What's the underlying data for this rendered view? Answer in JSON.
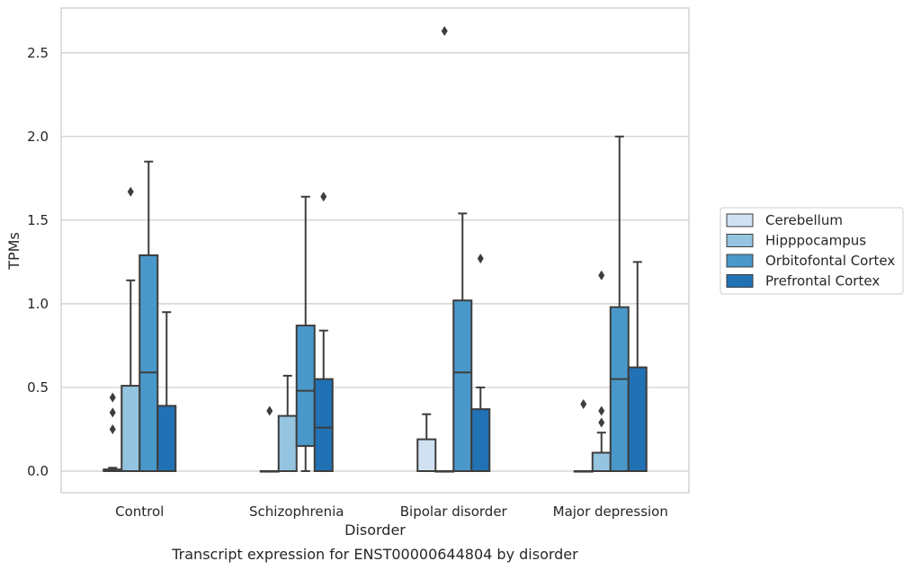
{
  "chart_data": {
    "type": "box",
    "caption": "Transcript expression for ENST00000644804 by disorder",
    "xlabel": "Disorder",
    "ylabel": "TPMs",
    "ylim": [
      -0.13,
      2.77
    ],
    "yticks": [
      0.0,
      0.5,
      1.0,
      1.5,
      2.0,
      2.5
    ],
    "ytick_labels": [
      "0.0",
      "0.5",
      "1.0",
      "1.5",
      "2.0",
      "2.5"
    ],
    "grid": "horizontal",
    "legend_position": "right",
    "categories": [
      "Control",
      "Schizophrenia",
      "Bipolar disorder",
      "Major depression"
    ],
    "series": [
      {
        "name": "Cerebellum",
        "color": "#d0e1f2",
        "boxes": [
          {
            "min": 0.0,
            "q1": 0.0,
            "median": 0.0,
            "q3": 0.01,
            "max": 0.02,
            "outliers": [
              0.25,
              0.35,
              0.44
            ]
          },
          {
            "min": 0.0,
            "q1": 0.0,
            "median": 0.0,
            "q3": 0.0,
            "max": 0.0,
            "outliers": [
              0.36
            ]
          },
          {
            "min": 0.0,
            "q1": 0.0,
            "median": 0.0,
            "q3": 0.19,
            "max": 0.34,
            "outliers": []
          },
          {
            "min": 0.0,
            "q1": 0.0,
            "median": 0.0,
            "q3": 0.0,
            "max": 0.0,
            "outliers": [
              0.4
            ]
          }
        ]
      },
      {
        "name": "Hipppocampus",
        "color": "#94c4df",
        "boxes": [
          {
            "min": 0.0,
            "q1": 0.0,
            "median": 0.0,
            "q3": 0.51,
            "max": 1.14,
            "outliers": [
              1.67
            ]
          },
          {
            "min": 0.0,
            "q1": 0.0,
            "median": 0.0,
            "q3": 0.33,
            "max": 0.57,
            "outliers": []
          },
          {
            "min": 0.0,
            "q1": 0.0,
            "median": 0.0,
            "q3": 0.0,
            "max": 0.0,
            "outliers": [
              2.63
            ]
          },
          {
            "min": 0.0,
            "q1": 0.0,
            "median": 0.0,
            "q3": 0.11,
            "max": 0.23,
            "outliers": [
              0.29,
              0.36,
              1.17
            ]
          }
        ]
      },
      {
        "name": "Orbitofontal Cortex",
        "color": "#4a98c9",
        "boxes": [
          {
            "min": 0.0,
            "q1": 0.0,
            "median": 0.59,
            "q3": 1.29,
            "max": 1.85,
            "outliers": []
          },
          {
            "min": 0.0,
            "q1": 0.15,
            "median": 0.48,
            "q3": 0.87,
            "max": 1.64,
            "outliers": []
          },
          {
            "min": 0.0,
            "q1": 0.0,
            "median": 0.59,
            "q3": 1.02,
            "max": 1.54,
            "outliers": []
          },
          {
            "min": 0.0,
            "q1": 0.0,
            "median": 0.55,
            "q3": 0.98,
            "max": 2.0,
            "outliers": []
          }
        ]
      },
      {
        "name": "Prefrontal Cortex",
        "color": "#2171b5",
        "boxes": [
          {
            "min": 0.0,
            "q1": 0.0,
            "median": 0.0,
            "q3": 0.39,
            "max": 0.95,
            "outliers": []
          },
          {
            "min": 0.0,
            "q1": 0.0,
            "median": 0.26,
            "q3": 0.55,
            "max": 0.84,
            "outliers": [
              1.64
            ]
          },
          {
            "min": 0.0,
            "q1": 0.0,
            "median": 0.0,
            "q3": 0.37,
            "max": 0.5,
            "outliers": [
              1.27
            ]
          },
          {
            "min": 0.0,
            "q1": 0.0,
            "median": 0.0,
            "q3": 0.62,
            "max": 1.25,
            "outliers": []
          }
        ]
      }
    ]
  }
}
